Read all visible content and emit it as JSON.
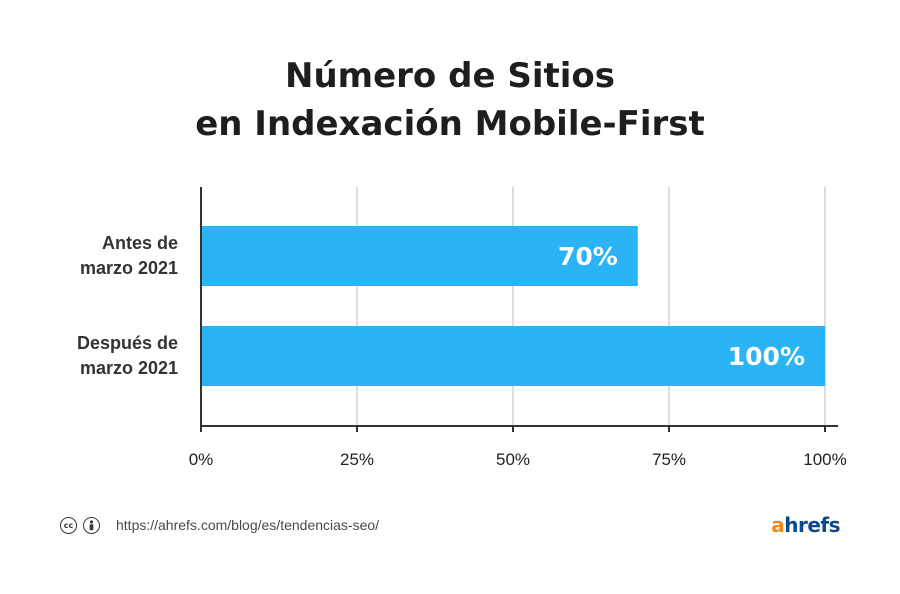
{
  "title": {
    "line1": "Número de Sitios",
    "line2": "en Indexación Mobile-First"
  },
  "chart_data": {
    "type": "bar",
    "orientation": "horizontal",
    "title": "Número de Sitios en Indexación Mobile-First",
    "categories": [
      [
        "Antes de",
        "marzo 2021"
      ],
      [
        "Después de",
        "marzo 2021"
      ]
    ],
    "values": [
      70,
      100
    ],
    "data_labels": [
      "70%",
      "100%"
    ],
    "xlim": [
      0,
      100
    ],
    "xticks": [
      0,
      25,
      50,
      75,
      100
    ],
    "xtick_labels": [
      "0%",
      "25%",
      "50%",
      "75%",
      "100%"
    ],
    "grid": true,
    "legend": "none",
    "bar_color": "#2ab4f5",
    "grid_color": "#dddddd",
    "axis_color": "#333333"
  },
  "footer": {
    "license_icons": [
      "cc-icon",
      "attribution-icon"
    ],
    "source_url": "https://ahrefs.com/blog/es/tendencias-seo/",
    "logo_a": "a",
    "logo_rest": "hrefs",
    "logo_colors": {
      "a": "#f08a1a",
      "rest": "#0a4a8c"
    }
  }
}
